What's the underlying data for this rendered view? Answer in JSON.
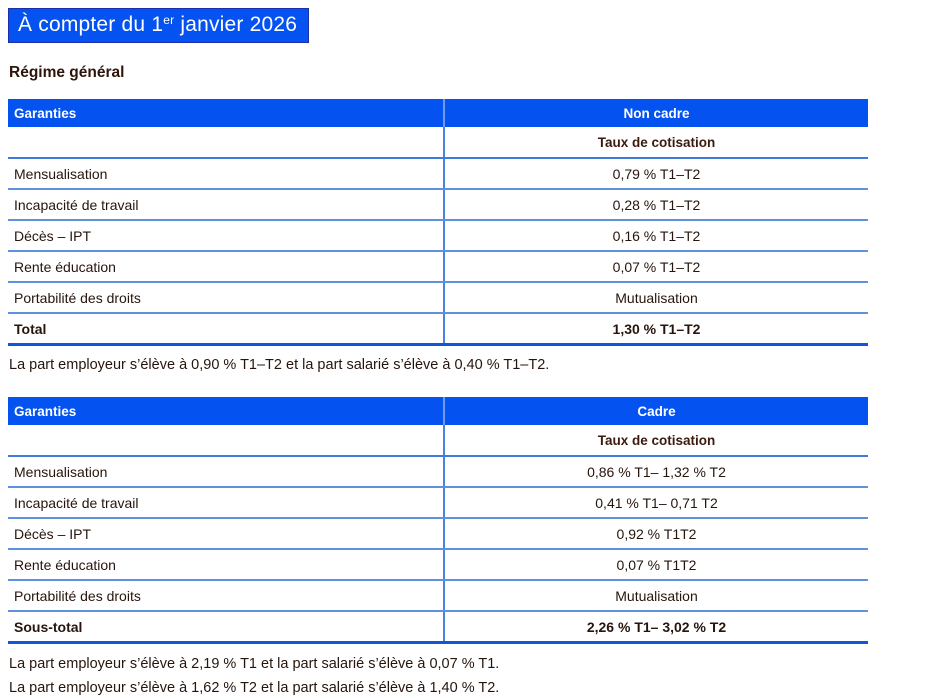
{
  "title": {
    "prefix": "À compter du 1",
    "superscript": "er",
    "suffix": " janvier 2026"
  },
  "section_heading": "Régime général",
  "colors": {
    "accent_blue": "#0452F0",
    "header_text": "#FFFFFF",
    "body_text": "#26150C",
    "row_border": "#5F92DD",
    "table_bottom_border": "#1256D8",
    "column_divider": "#4A82E0"
  },
  "tables": [
    {
      "col1_header": "Garanties",
      "col2_header": "Non cadre",
      "subheader": "Taux de cotisation",
      "rows": [
        {
          "label": "Mensualisation",
          "value": "0,79 % T1–T2"
        },
        {
          "label": "Incapacité de travail",
          "value": "0,28 % T1–T2"
        },
        {
          "label": "Décès – IPT",
          "value": "0,16 % T1–T2"
        },
        {
          "label": "Rente éducation",
          "value": "0,07 % T1–T2"
        },
        {
          "label": "Portabilité des droits",
          "value": "Mutualisation"
        },
        {
          "label": "Total",
          "value": "1,30 % T1–T2"
        }
      ],
      "footnotes": [
        "La part employeur s’élève à 0,90 % T1–T2 et la part salarié s’élève à 0,40 % T1–T2."
      ]
    },
    {
      "col1_header": "Garanties",
      "col2_header": "Cadre",
      "subheader": "Taux de cotisation",
      "rows": [
        {
          "label": "Mensualisation",
          "value": "0,86 % T1– 1,32 % T2"
        },
        {
          "label": "Incapacité de travail",
          "value": "0,41 % T1– 0,71 T2"
        },
        {
          "label": "Décès – IPT",
          "value": "0,92 % T1T2"
        },
        {
          "label": "Rente éducation",
          "value": "0,07 % T1T2"
        },
        {
          "label": "Portabilité des droits",
          "value": "Mutualisation"
        },
        {
          "label": "Sous-total",
          "value": "2,26 % T1– 3,02 % T2"
        }
      ],
      "footnotes": [
        "La part employeur s’élève à 2,19 % T1 et la part salarié s’élève à 0,07 % T1.",
        "La part employeur s’élève à 1,62 % T2 et la part salarié s’élève à 1,40 % T2."
      ]
    }
  ]
}
